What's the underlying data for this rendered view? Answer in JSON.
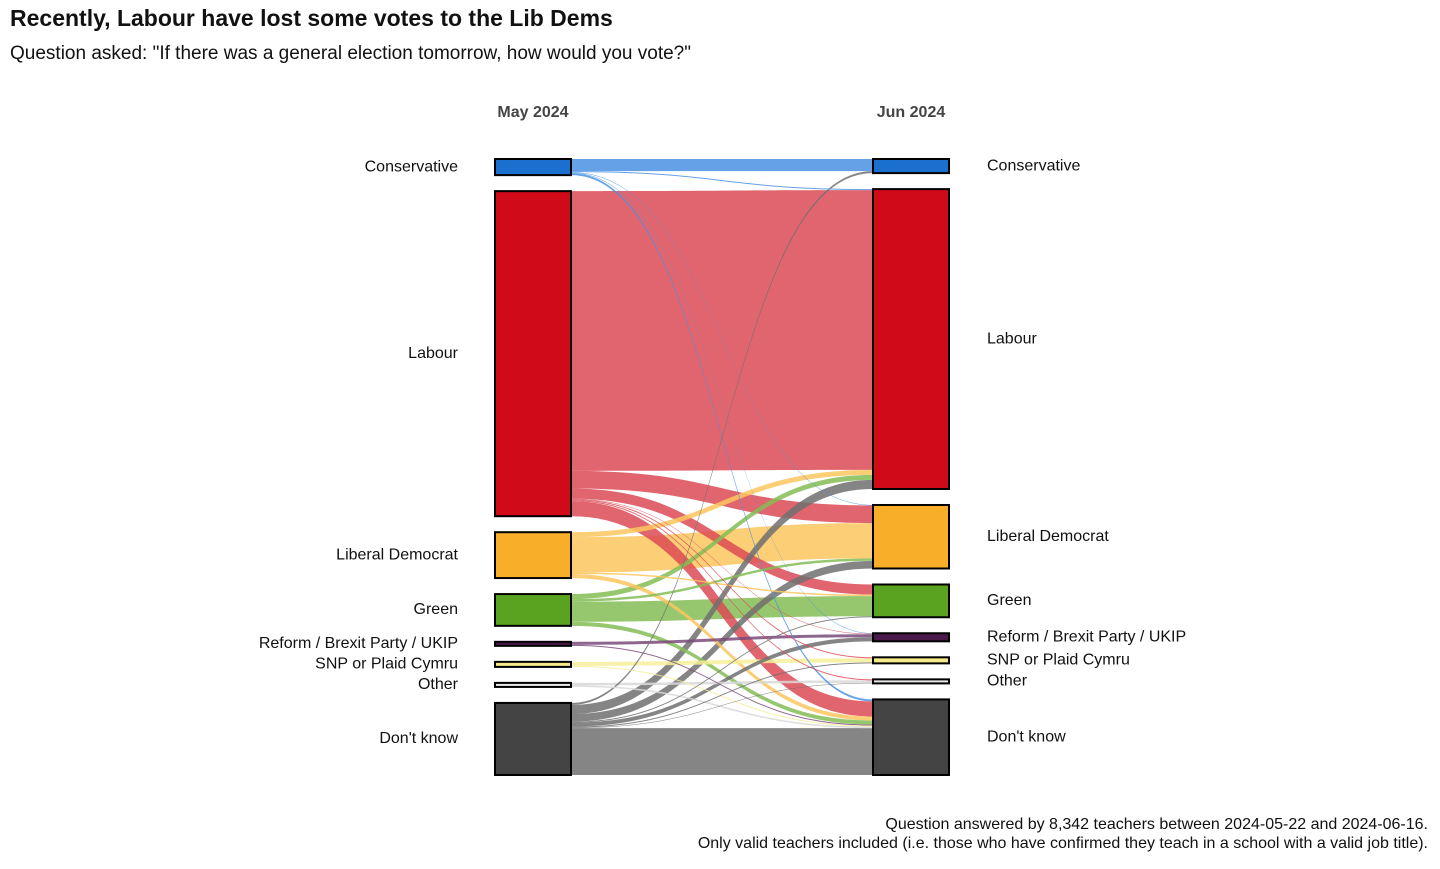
{
  "chart_data": {
    "type": "sankey",
    "title": "Recently, Labour have lost some votes to the Lib Dems",
    "subtitle": "Question asked: \"If there was a general election tomorrow, how would you vote?\"",
    "columns": [
      "May 2024",
      "Jun 2024"
    ],
    "nodes": [
      {
        "name": "Conservative",
        "color": "#1a6fcf",
        "link_color": "#4a90e2"
      },
      {
        "name": "Labour",
        "color": "#d10a1a",
        "link_color": "#dc4a55"
      },
      {
        "name": "Liberal Democrat",
        "color": "#f9ae2a",
        "link_color": "#fbc55e"
      },
      {
        "name": "Green",
        "color": "#5aa320",
        "link_color": "#84bd55"
      },
      {
        "name": "Reform / Brexit Party / UKIP",
        "color": "#4b1a4b",
        "link_color": "#7a4a7a"
      },
      {
        "name": "SNP or Plaid Cymru",
        "color": "#f5e98a",
        "link_color": "#f7ef9a"
      },
      {
        "name": "Other",
        "color": "#e8e8e8",
        "link_color": "#d8d8d8"
      },
      {
        "name": "Don't know",
        "color": "#444444",
        "link_color": "#707070"
      }
    ],
    "links": [
      {
        "source": 0,
        "target": 0,
        "value": 2.4
      },
      {
        "source": 0,
        "target": 1,
        "value": 0.2
      },
      {
        "source": 0,
        "target": 2,
        "value": 0.1
      },
      {
        "source": 0,
        "target": 4,
        "value": 0.1
      },
      {
        "source": 0,
        "target": 7,
        "value": 0.4
      },
      {
        "source": 1,
        "target": 1,
        "value": 55.5
      },
      {
        "source": 1,
        "target": 2,
        "value": 3.5
      },
      {
        "source": 1,
        "target": 3,
        "value": 2.0
      },
      {
        "source": 1,
        "target": 4,
        "value": 0.1
      },
      {
        "source": 1,
        "target": 5,
        "value": 0.2
      },
      {
        "source": 1,
        "target": 6,
        "value": 0.2
      },
      {
        "source": 1,
        "target": 7,
        "value": 3.0
      },
      {
        "source": 2,
        "target": 1,
        "value": 1.0
      },
      {
        "source": 2,
        "target": 2,
        "value": 7.0
      },
      {
        "source": 2,
        "target": 3,
        "value": 0.3
      },
      {
        "source": 2,
        "target": 7,
        "value": 0.8
      },
      {
        "source": 3,
        "target": 1,
        "value": 1.0
      },
      {
        "source": 3,
        "target": 2,
        "value": 0.5
      },
      {
        "source": 3,
        "target": 3,
        "value": 4.0
      },
      {
        "source": 3,
        "target": 7,
        "value": 0.8
      },
      {
        "source": 4,
        "target": 4,
        "value": 0.6
      },
      {
        "source": 4,
        "target": 7,
        "value": 0.2
      },
      {
        "source": 5,
        "target": 5,
        "value": 0.8
      },
      {
        "source": 5,
        "target": 7,
        "value": 0.2
      },
      {
        "source": 6,
        "target": 6,
        "value": 0.5
      },
      {
        "source": 6,
        "target": 7,
        "value": 0.3
      },
      {
        "source": 7,
        "target": 0,
        "value": 0.4
      },
      {
        "source": 7,
        "target": 1,
        "value": 1.8
      },
      {
        "source": 7,
        "target": 2,
        "value": 1.5
      },
      {
        "source": 7,
        "target": 3,
        "value": 0.2
      },
      {
        "source": 7,
        "target": 4,
        "value": 0.8
      },
      {
        "source": 7,
        "target": 5,
        "value": 0.2
      },
      {
        "source": 7,
        "target": 6,
        "value": 0.1
      },
      {
        "source": 7,
        "target": 7,
        "value": 9.3
      }
    ],
    "footnote": [
      "Question answered by 8,342 teachers between 2024-05-22 and 2024-06-16.",
      "Only valid teachers included (i.e. those who have confirmed they teach in a school with a valid job title)."
    ]
  }
}
